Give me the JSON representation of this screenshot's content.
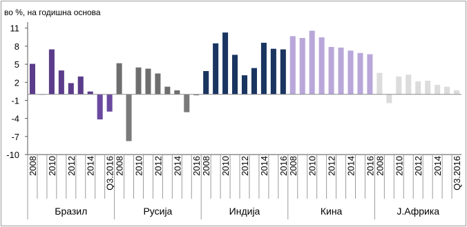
{
  "chart_data": {
    "type": "bar",
    "title": "",
    "unit_label": "во %, на годишна основа",
    "xlabel": "",
    "ylabel": "",
    "ylim": [
      -10,
      12
    ],
    "y_ticks": [
      11,
      8,
      5,
      2,
      -1,
      -4,
      -7,
      -10
    ],
    "grid": false,
    "legend": "none",
    "groups": [
      {
        "name": "Бразил",
        "color": "#5b3c8a",
        "neg_color": "#6a4aa0",
        "x_labels": [
          "2008",
          "",
          "2010",
          "",
          "2012",
          "",
          "2014",
          "",
          "Q3.2016"
        ],
        "values": [
          5.1,
          -0.1,
          7.5,
          4.0,
          1.9,
          3.0,
          0.5,
          -4.2,
          -2.9
        ]
      },
      {
        "name": "Русија",
        "color": "#6e6e6e",
        "neg_color": "#7a7a7a",
        "x_labels": [
          "2008",
          "",
          "2010",
          "",
          "2012",
          "",
          "2014",
          "",
          "2016"
        ],
        "values": [
          5.2,
          -7.8,
          4.5,
          4.3,
          3.5,
          1.3,
          0.7,
          -3.0,
          -0.2
        ]
      },
      {
        "name": "Индија",
        "color": "#1a3560",
        "neg_color": "#1a3560",
        "x_labels": [
          "2008",
          "",
          "2010",
          "",
          "2012",
          "",
          "2014",
          "",
          "2016"
        ],
        "values": [
          3.9,
          8.5,
          10.3,
          6.6,
          3.2,
          4.4,
          8.6,
          7.6,
          7.5
        ]
      },
      {
        "name": "Кина",
        "color": "#b9a7d9",
        "neg_color": "#b9a7d9",
        "x_labels": [
          "2008",
          "",
          "2010",
          "",
          "2012",
          "",
          "2014",
          "",
          "2016"
        ],
        "values": [
          9.7,
          9.4,
          10.6,
          9.5,
          7.9,
          7.8,
          7.3,
          6.9,
          6.7
        ]
      },
      {
        "name": "Ј.Африка",
        "color": "#dcdcdc",
        "neg_color": "#dcdcdc",
        "x_labels": [
          "2008",
          "",
          "2010",
          "",
          "2012",
          "",
          "2014",
          "",
          "Q3.2016"
        ],
        "values": [
          3.6,
          -1.5,
          3.0,
          3.3,
          2.2,
          2.3,
          1.6,
          1.3,
          0.7
        ]
      }
    ]
  }
}
